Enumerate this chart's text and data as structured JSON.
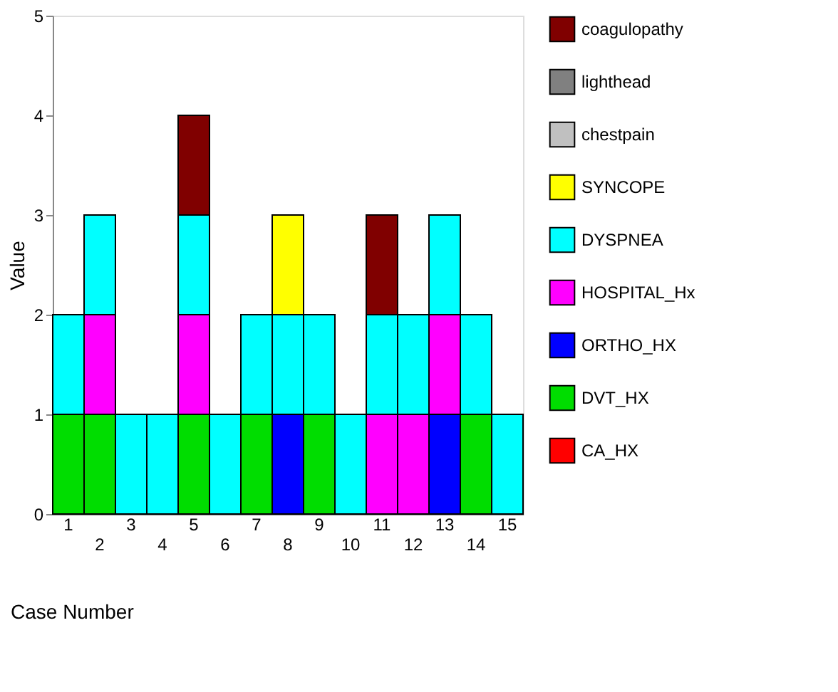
{
  "chart_data": {
    "type": "bar",
    "stacked": true,
    "xlabel": "Case Number",
    "ylabel": "Value",
    "categories": [
      "1",
      "2",
      "3",
      "4",
      "5",
      "6",
      "7",
      "8",
      "9",
      "10",
      "11",
      "12",
      "13",
      "14",
      "15"
    ],
    "series": [
      {
        "name": "CA_HX",
        "color": "#ff0000",
        "values": [
          0,
          0,
          0,
          0,
          0,
          0,
          0,
          0,
          0,
          0,
          0,
          0,
          0,
          0,
          0
        ]
      },
      {
        "name": "DVT_HX",
        "color": "#00dd00",
        "values": [
          1,
          1,
          0,
          0,
          1,
          0,
          1,
          0,
          1,
          0,
          0,
          0,
          0,
          1,
          0
        ]
      },
      {
        "name": "ORTHO_HX",
        "color": "#0000ff",
        "values": [
          0,
          0,
          0,
          0,
          0,
          0,
          0,
          1,
          0,
          0,
          0,
          0,
          1,
          0,
          0
        ]
      },
      {
        "name": "HOSPITAL_Hx",
        "color": "#ff00ff",
        "values": [
          0,
          1,
          0,
          0,
          1,
          0,
          0,
          0,
          0,
          0,
          1,
          1,
          1,
          0,
          0
        ]
      },
      {
        "name": "DYSPNEA",
        "color": "#00ffff",
        "values": [
          1,
          1,
          1,
          1,
          1,
          1,
          1,
          1,
          1,
          1,
          1,
          1,
          1,
          1,
          1
        ]
      },
      {
        "name": "SYNCOPE",
        "color": "#ffff00",
        "values": [
          0,
          0,
          0,
          0,
          0,
          0,
          0,
          1,
          0,
          0,
          0,
          0,
          0,
          0,
          0
        ]
      },
      {
        "name": "chestpain",
        "color": "#c0c0c0",
        "values": [
          0,
          0,
          0,
          0,
          0,
          0,
          0,
          0,
          0,
          0,
          0,
          0,
          0,
          0,
          0
        ]
      },
      {
        "name": "lighthead",
        "color": "#808080",
        "values": [
          0,
          0,
          0,
          0,
          0,
          0,
          0,
          0,
          0,
          0,
          0,
          0,
          0,
          0,
          0
        ]
      },
      {
        "name": "coagulopathy",
        "color": "#800000",
        "values": [
          0,
          0,
          0,
          0,
          1,
          0,
          0,
          0,
          0,
          0,
          1,
          0,
          0,
          0,
          0
        ]
      }
    ],
    "ylim": [
      0,
      5
    ],
    "yticks": [
      0,
      1,
      2,
      3,
      4,
      5
    ],
    "grid": false,
    "legend": "right"
  }
}
